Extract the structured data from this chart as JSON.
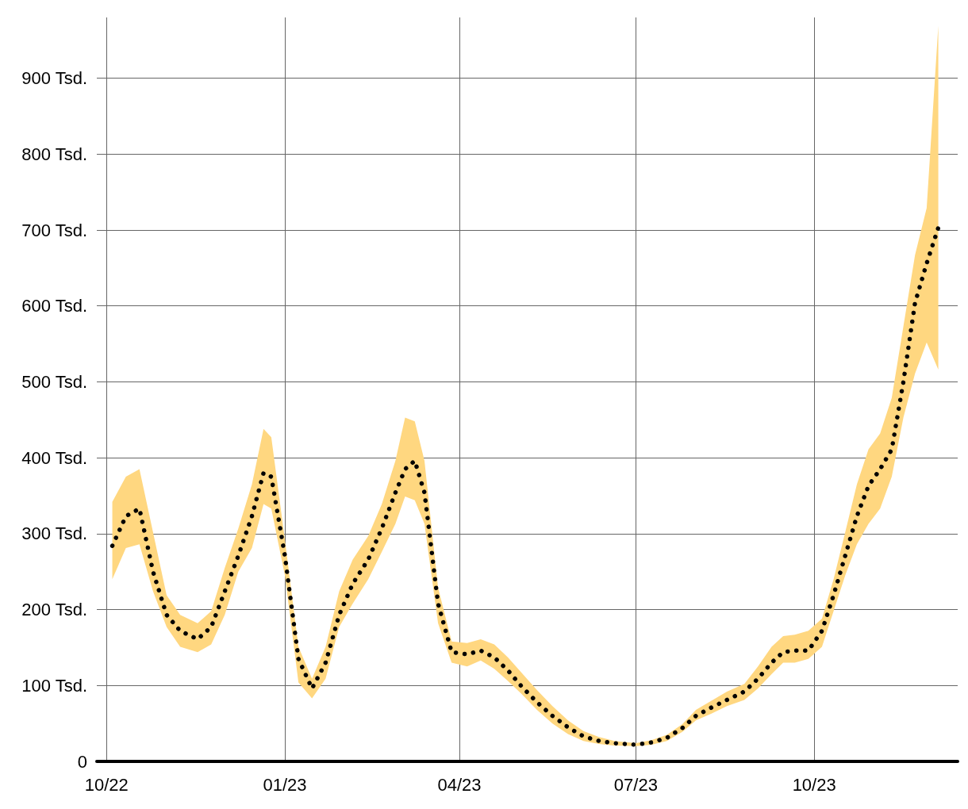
{
  "chart_data": {
    "type": "line",
    "x": [
      "2022-10-04",
      "2022-10-11",
      "2022-10-18",
      "2022-10-25",
      "2022-11-01",
      "2022-11-08",
      "2022-11-17",
      "2022-11-24",
      "2022-12-01",
      "2022-12-08",
      "2022-12-15",
      "2022-12-21",
      "2022-12-25",
      "2023-01-01",
      "2023-01-08",
      "2023-01-15",
      "2023-01-22",
      "2023-01-29",
      "2023-02-05",
      "2023-02-13",
      "2023-02-20",
      "2023-02-27",
      "2023-03-04",
      "2023-03-09",
      "2023-03-14",
      "2023-03-21",
      "2023-03-28",
      "2023-04-05",
      "2023-04-12",
      "2023-04-19",
      "2023-04-26",
      "2023-05-03",
      "2023-05-11",
      "2023-05-19",
      "2023-05-27",
      "2023-06-04",
      "2023-06-12",
      "2023-06-20",
      "2023-07-01",
      "2023-07-09",
      "2023-07-17",
      "2023-07-25",
      "2023-08-01",
      "2023-08-09",
      "2023-08-17",
      "2023-08-26",
      "2023-09-02",
      "2023-09-09",
      "2023-09-15",
      "2023-09-21",
      "2023-09-28",
      "2023-10-05",
      "2023-10-11",
      "2023-10-17",
      "2023-10-23",
      "2023-10-29",
      "2023-11-04",
      "2023-11-10",
      "2023-11-16",
      "2023-11-22",
      "2023-11-28",
      "2023-12-04"
    ],
    "series": [
      {
        "color": "#000000",
        "values": [
          284,
          323,
          333,
          250,
          193,
          172,
          161,
          177,
          224,
          271,
          323,
          380,
          375,
          271,
          135,
          96,
          130,
          193,
          234,
          266,
          307,
          354,
          385,
          396,
          354,
          208,
          144,
          141,
          146,
          137,
          120,
          99,
          78,
          60,
          45,
          33,
          27,
          24,
          22,
          25,
          31,
          44,
          60,
          71,
          81,
          92,
          109,
          130,
          144,
          146,
          146,
          172,
          219,
          271,
          323,
          363,
          385,
          411,
          500,
          604,
          656,
          703
        ],
        "lower": [
          240,
          281,
          286,
          224,
          177,
          151,
          144,
          154,
          193,
          250,
          281,
          339,
          333,
          245,
          104,
          83,
          109,
          177,
          208,
          240,
          276,
          313,
          349,
          344,
          313,
          182,
          130,
          125,
          133,
          122,
          106,
          89,
          68,
          50,
          36,
          27,
          23,
          21,
          20,
          22,
          27,
          39,
          54,
          63,
          73,
          81,
          96,
          115,
          130,
          130,
          135,
          151,
          198,
          245,
          286,
          313,
          333,
          375,
          453,
          511,
          552,
          516
        ],
        "upper": [
          342,
          375,
          385,
          302,
          219,
          193,
          182,
          198,
          255,
          307,
          365,
          438,
          427,
          292,
          151,
          109,
          151,
          224,
          266,
          297,
          339,
          396,
          453,
          448,
          396,
          229,
          158,
          156,
          161,
          154,
          137,
          117,
          94,
          73,
          54,
          40,
          32,
          27,
          24,
          28,
          35,
          49,
          68,
          80,
          92,
          102,
          125,
          151,
          165,
          167,
          172,
          188,
          240,
          302,
          365,
          411,
          432,
          479,
          573,
          667,
          729,
          969
        ]
      }
    ],
    "xlim": [
      "2022-09-26",
      "2023-12-14"
    ],
    "xticks": [
      {
        "value": "2022-10-01",
        "label": "10/22"
      },
      {
        "value": "2023-01-01",
        "label": "01/23"
      },
      {
        "value": "2023-04-01",
        "label": "04/23"
      },
      {
        "value": "2023-07-01",
        "label": "07/23"
      },
      {
        "value": "2023-10-01",
        "label": "10/23"
      }
    ],
    "ylim": [
      0,
      980
    ],
    "yticks": [
      0,
      {
        "value": 100,
        "label": "100 Tsd."
      },
      {
        "value": 200,
        "label": "200 Tsd."
      },
      {
        "value": 300,
        "label": "300 Tsd."
      },
      {
        "value": 400,
        "label": "400 Tsd."
      },
      {
        "value": 500,
        "label": "500 Tsd."
      },
      {
        "value": 600,
        "label": "600 Tsd."
      },
      {
        "value": 700,
        "label": "700 Tsd."
      },
      {
        "value": 800,
        "label": "800 Tsd."
      },
      {
        "value": 900,
        "label": "900 Tsd."
      }
    ],
    "grid": true,
    "line_style": "dotted",
    "marker": "none"
  }
}
